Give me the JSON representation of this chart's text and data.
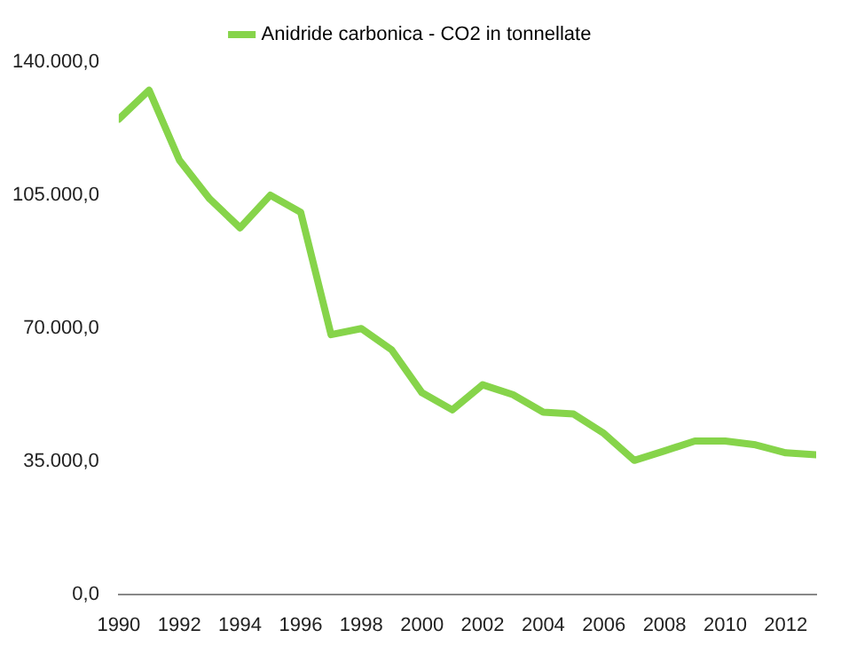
{
  "chart_data": {
    "type": "line",
    "x": [
      1990,
      1991,
      1992,
      1993,
      1994,
      1995,
      1996,
      1997,
      1998,
      1999,
      2000,
      2001,
      2002,
      2003,
      2004,
      2005,
      2006,
      2007,
      2008,
      2009,
      2010,
      2011,
      2012,
      2013
    ],
    "series": [
      {
        "name": "Anidride carbonica - CO2 in tonnellate",
        "color": "#86d44a",
        "values": [
          125000,
          132600,
          114200,
          104000,
          96400,
          105000,
          100500,
          68300,
          69900,
          64300,
          53000,
          48500,
          55100,
          52500,
          47900,
          47400,
          42300,
          35200,
          37700,
          40300,
          40300,
          39300,
          37200,
          36700
        ]
      }
    ],
    "xlim": [
      1990,
      2013
    ],
    "xticks": [
      1990,
      1992,
      1994,
      1996,
      1998,
      2000,
      2002,
      2004,
      2006,
      2008,
      2010,
      2012
    ],
    "ylim": [
      0,
      140000
    ],
    "yticks": [
      {
        "value": 0,
        "label": "0,0"
      },
      {
        "value": 35000,
        "label": "35.000,0"
      },
      {
        "value": 70000,
        "label": "70.000,0"
      },
      {
        "value": 105000,
        "label": "105.000,0"
      },
      {
        "value": 140000,
        "label": "140.000,0"
      }
    ],
    "grid": false,
    "legend": "top",
    "marker": "none",
    "line_style": "solid"
  }
}
